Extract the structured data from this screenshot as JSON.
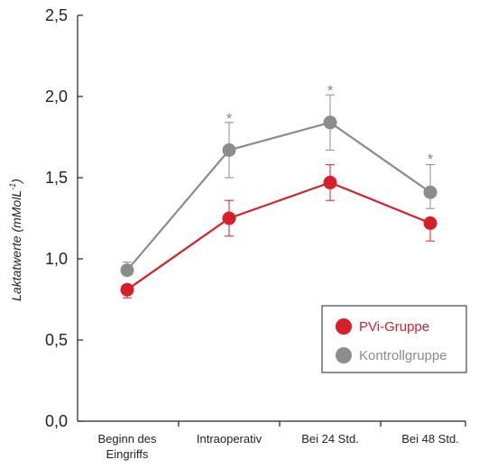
{
  "chart_data": {
    "type": "line",
    "categories": [
      [
        "Beginn des",
        "Eingriffs"
      ],
      [
        "Intraoperativ"
      ],
      [
        "Bei 24 Std."
      ],
      [
        "Bei 48 Std."
      ]
    ],
    "ylabel": "Laktatwerte (mMolL",
    "ylabel_sup": "-1",
    "ylabel_close": ")",
    "ylim": [
      0,
      2.5
    ],
    "yticks": [
      "0,0",
      "0,5",
      "1,0",
      "1,5",
      "2,0",
      "2,5"
    ],
    "grid": false,
    "legend_position": "bottom-right",
    "series": [
      {
        "name": "PVi-Gruppe",
        "color": "#d71f2b",
        "values": [
          0.81,
          1.25,
          1.47,
          1.22
        ],
        "err_low": [
          0.05,
          0.11,
          0.11,
          0.11
        ],
        "err_high": [
          0.03,
          0.11,
          0.11,
          0.0
        ]
      },
      {
        "name": "Kontrollgruppe",
        "color": "#8c8c8c",
        "values": [
          0.93,
          1.67,
          1.84,
          1.41
        ],
        "err_low": [
          0.0,
          0.17,
          0.17,
          0.1
        ],
        "err_high": [
          0.05,
          0.17,
          0.17,
          0.17
        ]
      }
    ],
    "annotations": [
      {
        "text": "*",
        "category_index": 1,
        "y": 1.84
      },
      {
        "text": "*",
        "category_index": 2,
        "y": 2.01
      },
      {
        "text": "*",
        "category_index": 3,
        "y": 1.59
      }
    ]
  }
}
